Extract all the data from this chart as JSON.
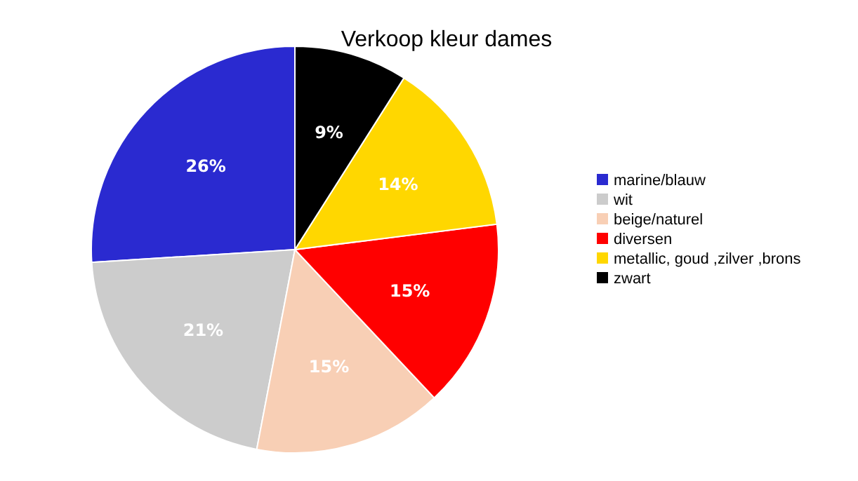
{
  "chart_data": {
    "type": "pie",
    "title": "Verkoop kleur dames",
    "categories": [
      "marine/blauw",
      "wit",
      "beige/naturel",
      "diversen",
      "metallic, goud ,zilver ,brons",
      "zwart"
    ],
    "values": [
      26,
      21,
      15,
      15,
      14,
      9
    ],
    "value_labels": [
      "26%",
      "21%",
      "15%",
      "15%",
      "14%",
      "9%"
    ],
    "colors": [
      "#2a2ad0",
      "#cccccc",
      "#f8cfb5",
      "#ff0000",
      "#ffd700",
      "#000000"
    ],
    "legend": "right"
  }
}
